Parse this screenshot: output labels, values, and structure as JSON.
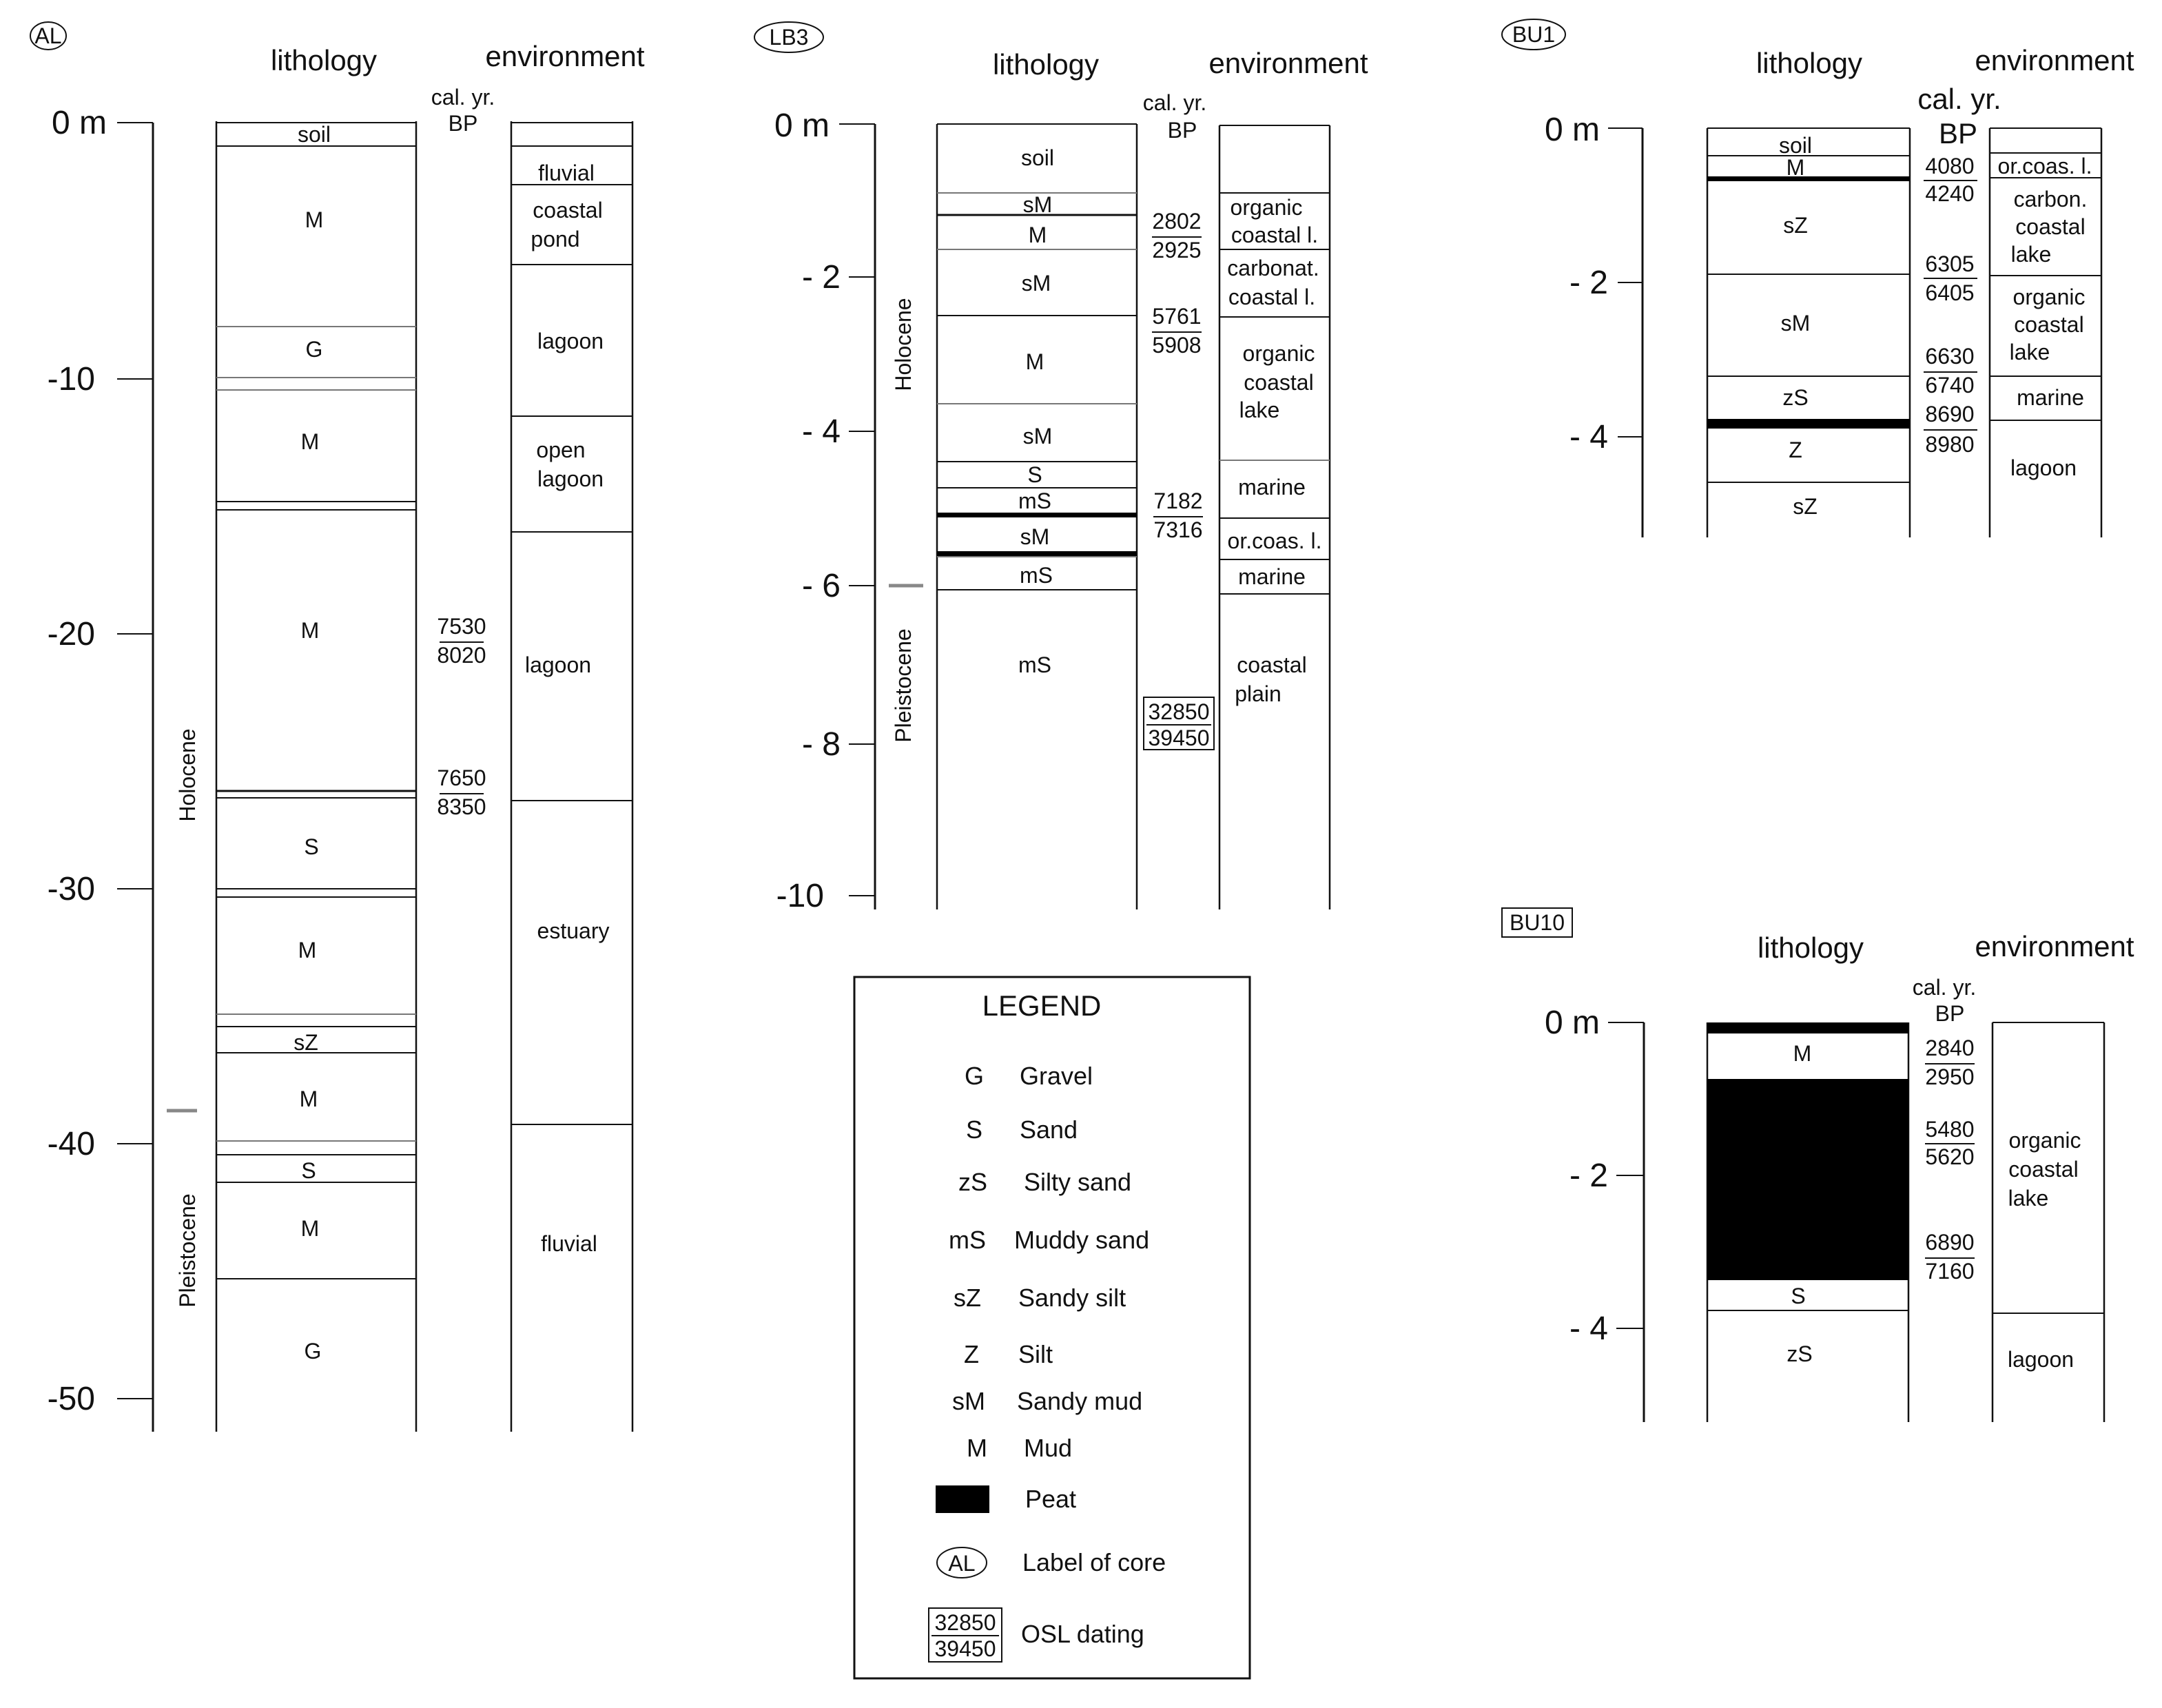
{
  "headings": {
    "lithology": "lithology",
    "environment": "environment",
    "cal": "cal. yr.",
    "bp": "BP"
  },
  "cores": {
    "AL": {
      "label": "AL",
      "ticks": [
        "0 m",
        "-10",
        "-20",
        "-30",
        "-40",
        "-50"
      ],
      "epochs": [
        "Holocene",
        "Pleistocene"
      ],
      "layers": [
        "soil",
        "M",
        "G",
        "M",
        "M",
        "S",
        "M",
        "sZ",
        "M",
        "S",
        "M",
        "G"
      ],
      "envs": [
        "fluvial",
        "coastal",
        "pond",
        "lagoon",
        "open",
        "lagoon",
        "lagoon",
        "estuary",
        "fluvial"
      ],
      "dates": [
        "7530",
        "8020",
        "7650",
        "8350"
      ]
    },
    "LB3": {
      "label": "LB3",
      "ticks": [
        "0 m",
        "- 2",
        "- 4",
        "- 6",
        "- 8",
        "-10"
      ],
      "epochs": [
        "Holocene",
        "Pleistocene"
      ],
      "layers": [
        "soil",
        "sM",
        "M",
        "sM",
        "M",
        "sM",
        "S",
        "mS",
        "sM",
        "mS",
        "mS"
      ],
      "envs": [
        "organic",
        "coastal l.",
        "carbonat.",
        "coastal l.",
        "organic",
        "coastal",
        "lake",
        "marine",
        "or.coas. l.",
        "marine",
        "coastal",
        "plain"
      ],
      "dates": [
        "2802",
        "2925",
        "5761",
        "5908",
        "7182",
        "7316",
        "32850",
        "39450"
      ]
    },
    "BU1": {
      "label": "BU1",
      "ticks": [
        "0 m",
        "- 2",
        "- 4"
      ],
      "layers": [
        "soil",
        "M",
        "sZ",
        "sM",
        "zS",
        "Z",
        "sZ"
      ],
      "envs": [
        "or.coas. l.",
        "carbon.",
        "coastal",
        "lake",
        "organic",
        "coastal",
        "lake",
        "marine",
        "lagoon"
      ],
      "dates": [
        "4080",
        "4240",
        "6305",
        "6405",
        "6630",
        "6740",
        "8690",
        "8980"
      ]
    },
    "BU10": {
      "label": "BU10",
      "ticks": [
        "0 m",
        "- 2",
        "- 4"
      ],
      "layers": [
        "M",
        "S",
        "zS"
      ],
      "envs": [
        "organic",
        "coastal",
        "lake",
        "lagoon"
      ],
      "dates": [
        "2840",
        "2950",
        "5480",
        "5620",
        "6890",
        "7160"
      ]
    }
  },
  "legend": {
    "title": "LEGEND",
    "items": [
      {
        "sym": "G",
        "text": "Gravel"
      },
      {
        "sym": "S",
        "text": "Sand"
      },
      {
        "sym": "zS",
        "text": "Silty sand"
      },
      {
        "sym": "mS",
        "text": "Muddy sand"
      },
      {
        "sym": "sZ",
        "text": "Sandy silt"
      },
      {
        "sym": "Z",
        "text": "Silt"
      },
      {
        "sym": "sM",
        "text": "Sandy mud"
      },
      {
        "sym": "M",
        "text": "Mud"
      }
    ],
    "peat": "Peat",
    "core_sym": "AL",
    "core_text": "Label of core",
    "osl_1": "32850",
    "osl_2": "39450",
    "osl_text": "OSL dating"
  }
}
